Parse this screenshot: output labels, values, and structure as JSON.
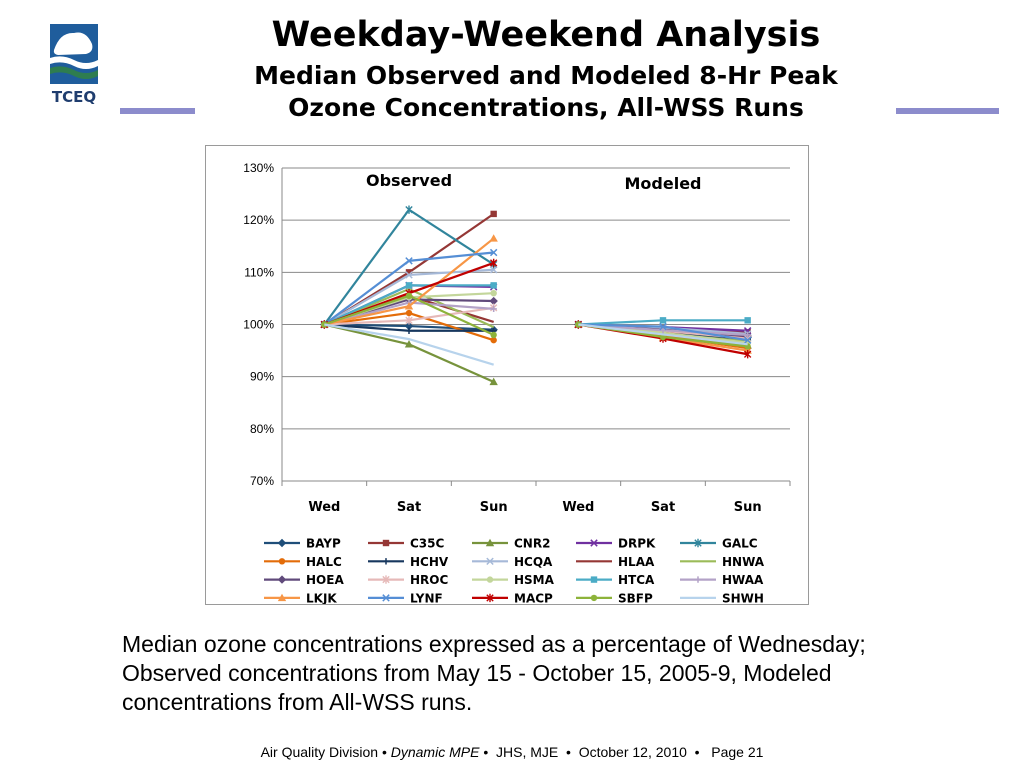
{
  "slide": {
    "logo_text": "TCEQ",
    "title": "Weekday-Weekend Analysis",
    "subtitle_line1": "Median Observed and Modeled 8-Hr Peak",
    "subtitle_line2": "Ozone Concentrations, All-WSS Runs",
    "caption": "Median ozone concentrations expressed as a percentage of Wednesday; Observed concentrations from May 15 - October 15, 2005-9, Modeled concentrations from All-WSS runs.",
    "footer": {
      "part1": "Air Quality Division",
      "part2": "Dynamic MPE",
      "part3": "JHS, MJE",
      "part4": "October 12, 2010",
      "part5": "Page 21",
      "sep": "•"
    },
    "colors": {
      "rule": "#8c8ccc",
      "logo_blue": "#1f5d9c",
      "logo_green": "#2e7d4f"
    }
  },
  "chart_data": {
    "type": "line",
    "panel_labels": [
      "Observed",
      "Modeled"
    ],
    "categories": [
      "Wed",
      "Sat",
      "Sun",
      "Wed",
      "Sat",
      "Sun"
    ],
    "y_ticks": [
      "130%",
      "120%",
      "110%",
      "100%",
      "90%",
      "80%",
      "70%"
    ],
    "ylim": [
      70,
      130
    ],
    "grid": true,
    "legend_position": "bottom",
    "series": [
      {
        "name": "BAYP",
        "color": "#1f4e79",
        "marker": "diamond",
        "obs": [
          100,
          99.7,
          99.0
        ],
        "mod": [
          100,
          98.6,
          97.5
        ]
      },
      {
        "name": "C35C",
        "color": "#953735",
        "marker": "square",
        "obs": [
          100,
          110.0,
          121.2
        ],
        "mod": [
          100,
          99.3,
          98.5
        ]
      },
      {
        "name": "CNR2",
        "color": "#77933c",
        "marker": "triangle",
        "obs": [
          100,
          96.2,
          89.0
        ],
        "mod": [
          100,
          98.0,
          96.0
        ]
      },
      {
        "name": "DRPK",
        "color": "#7030a0",
        "marker": "x",
        "obs": [
          100,
          107.5,
          107.2
        ],
        "mod": [
          100,
          99.5,
          98.8
        ]
      },
      {
        "name": "GALC",
        "color": "#31859c",
        "marker": "star",
        "obs": [
          100,
          122.0,
          111.5
        ],
        "mod": [
          100,
          98.5,
          97.5
        ]
      },
      {
        "name": "HALC",
        "color": "#e36c09",
        "marker": "circle",
        "obs": [
          100,
          102.2,
          97.0
        ],
        "mod": [
          100,
          97.8,
          95.5
        ]
      },
      {
        "name": "HCHV",
        "color": "#17375e",
        "marker": "plus",
        "obs": [
          100,
          98.8,
          98.8
        ],
        "mod": [
          100,
          98.3,
          97.2
        ]
      },
      {
        "name": "HCQA",
        "color": "#a6b9d8",
        "marker": "x",
        "obs": [
          100,
          109.5,
          110.5
        ],
        "mod": [
          100,
          99.4,
          98.2
        ]
      },
      {
        "name": "HLAA",
        "color": "#953735",
        "marker": "none",
        "obs": [
          100,
          105.5,
          100.5
        ],
        "mod": [
          100,
          98.7,
          97.6
        ]
      },
      {
        "name": "HNWA",
        "color": "#9bbb59",
        "marker": "none",
        "obs": [
          100,
          106.8,
          99.5
        ],
        "mod": [
          100,
          98.2,
          96.8
        ]
      },
      {
        "name": "HOEA",
        "color": "#604a7b",
        "marker": "diamond",
        "obs": [
          100,
          104.8,
          104.5
        ],
        "mod": [
          100,
          99.0,
          97.8
        ]
      },
      {
        "name": "HROC",
        "color": "#e6b9b8",
        "marker": "star",
        "obs": [
          100,
          100.8,
          103.2
        ],
        "mod": [
          100,
          98.8,
          97.3
        ]
      },
      {
        "name": "HSMA",
        "color": "#c3d69b",
        "marker": "circle",
        "obs": [
          100,
          105.2,
          106.0
        ],
        "mod": [
          100,
          98.4,
          96.5
        ]
      },
      {
        "name": "HTCA",
        "color": "#4bacc6",
        "marker": "square",
        "obs": [
          100,
          107.5,
          107.5
        ],
        "mod": [
          100,
          100.8,
          100.8
        ]
      },
      {
        "name": "HWAA",
        "color": "#b3a2c7",
        "marker": "plus",
        "obs": [
          100,
          104.2,
          103.0
        ],
        "mod": [
          100,
          98.9,
          98.0
        ]
      },
      {
        "name": "LKJK",
        "color": "#f79646",
        "marker": "triangle",
        "obs": [
          100,
          103.5,
          116.5
        ],
        "mod": [
          100,
          97.5,
          95.0
        ]
      },
      {
        "name": "LYNF",
        "color": "#558ed5",
        "marker": "x",
        "obs": [
          100,
          112.2,
          113.8
        ],
        "mod": [
          100,
          99.6,
          97.0
        ]
      },
      {
        "name": "MACP",
        "color": "#c00000",
        "marker": "star",
        "obs": [
          100,
          106.0,
          111.8
        ],
        "mod": [
          100,
          97.3,
          94.3
        ]
      },
      {
        "name": "SBFP",
        "color": "#8db33a",
        "marker": "circle",
        "obs": [
          100,
          105.5,
          98.0
        ],
        "mod": [
          100,
          97.6,
          95.8
        ]
      },
      {
        "name": "SHWH",
        "color": "#b7d3ec",
        "marker": "none",
        "obs": [
          100,
          97.2,
          92.3
        ],
        "mod": [
          100,
          98.1,
          96.2
        ]
      }
    ]
  }
}
